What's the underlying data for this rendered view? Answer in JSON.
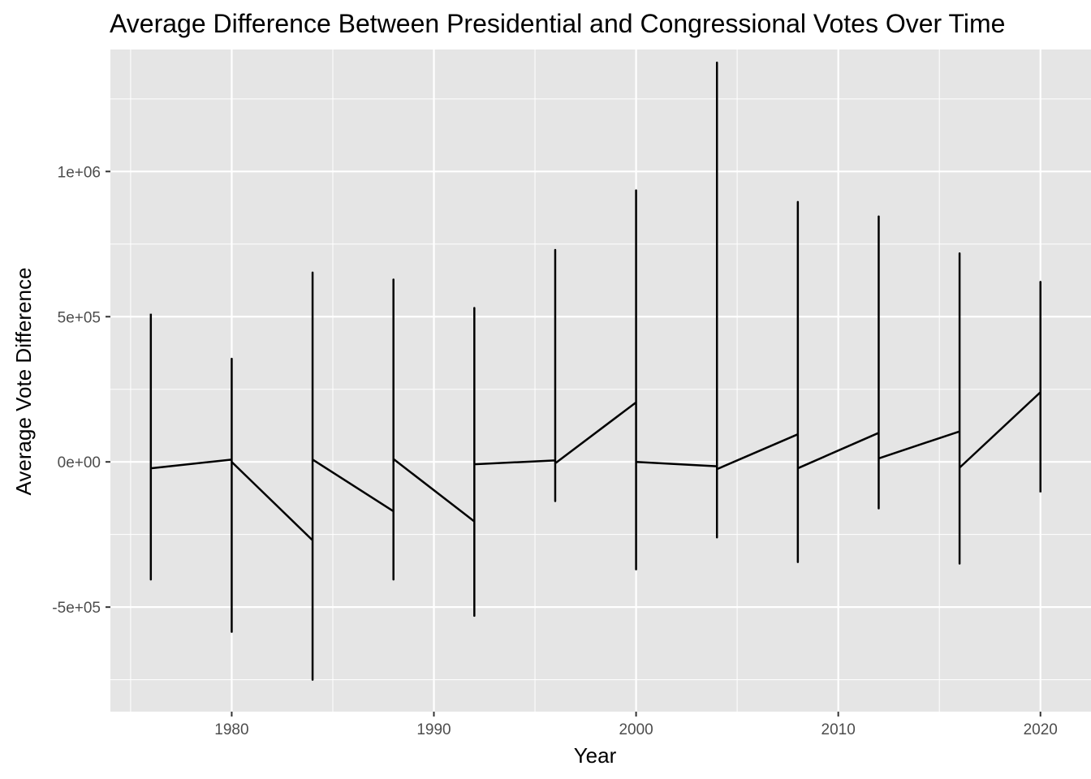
{
  "chart_data": {
    "type": "line",
    "title": "Average Difference Between Presidential and Congressional Votes Over Time",
    "xlabel": "Year",
    "ylabel": "Average Vote Difference",
    "xlim": [
      1974,
      2022.5
    ],
    "ylim": [
      -860000,
      1420000
    ],
    "x_ticks": [
      1980,
      1990,
      2000,
      2010,
      2020
    ],
    "x_tick_labels": [
      "1980",
      "1990",
      "2000",
      "2010",
      "2020"
    ],
    "y_ticks": [
      -500000,
      0,
      500000,
      1000000
    ],
    "y_tick_labels": [
      "-5e+05",
      "0e+00",
      "5e+05",
      "1e+06"
    ],
    "grid": true,
    "background": "#E5E5E5",
    "gridline_color": "#FFFFFF",
    "line_color": "#000000",
    "points": [
      {
        "x": 1976,
        "y": 510000
      },
      {
        "x": 1976,
        "y": -405000
      },
      {
        "x": 1976,
        "y": -22000
      },
      {
        "x": 1980,
        "y": 8000
      },
      {
        "x": 1980,
        "y": 355000
      },
      {
        "x": 1980,
        "y": -585000
      },
      {
        "x": 1980,
        "y": 0
      },
      {
        "x": 1984,
        "y": -270000
      },
      {
        "x": 1984,
        "y": 652000
      },
      {
        "x": 1984,
        "y": -750000
      },
      {
        "x": 1984,
        "y": 8000
      },
      {
        "x": 1988,
        "y": -170000
      },
      {
        "x": 1988,
        "y": 628000
      },
      {
        "x": 1988,
        "y": -405000
      },
      {
        "x": 1988,
        "y": 10000
      },
      {
        "x": 1992,
        "y": -205000
      },
      {
        "x": 1992,
        "y": 530000
      },
      {
        "x": 1992,
        "y": -530000
      },
      {
        "x": 1992,
        "y": -8000
      },
      {
        "x": 1996,
        "y": 5000
      },
      {
        "x": 1996,
        "y": 730000
      },
      {
        "x": 1996,
        "y": -135000
      },
      {
        "x": 1996,
        "y": -5000
      },
      {
        "x": 2000,
        "y": 205000
      },
      {
        "x": 2000,
        "y": 935000
      },
      {
        "x": 2000,
        "y": -370000
      },
      {
        "x": 2000,
        "y": 0
      },
      {
        "x": 2004,
        "y": -15000
      },
      {
        "x": 2004,
        "y": 1375000
      },
      {
        "x": 2004,
        "y": -260000
      },
      {
        "x": 2004,
        "y": -25000
      },
      {
        "x": 2008,
        "y": 95000
      },
      {
        "x": 2008,
        "y": 895000
      },
      {
        "x": 2008,
        "y": -345000
      },
      {
        "x": 2008,
        "y": -22000
      },
      {
        "x": 2012,
        "y": 100000
      },
      {
        "x": 2012,
        "y": 845000
      },
      {
        "x": 2012,
        "y": -160000
      },
      {
        "x": 2012,
        "y": 12000
      },
      {
        "x": 2016,
        "y": 105000
      },
      {
        "x": 2016,
        "y": 718000
      },
      {
        "x": 2016,
        "y": -350000
      },
      {
        "x": 2016,
        "y": -20000
      },
      {
        "x": 2020,
        "y": 240000
      },
      {
        "x": 2020,
        "y": 620000
      },
      {
        "x": 2020,
        "y": -105000
      }
    ]
  }
}
